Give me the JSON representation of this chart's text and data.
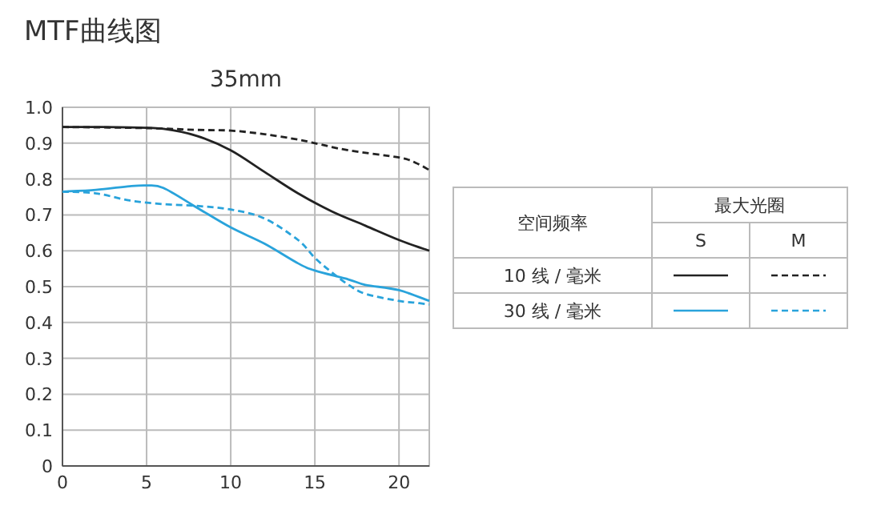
{
  "chart_data": {
    "type": "line",
    "title": "MTF曲线图",
    "subtitle": "35mm",
    "legend_title": "空间频率",
    "annotations": [
      "最大光圈",
      "S",
      "M"
    ],
    "xlim": [
      0,
      21.8
    ],
    "xticks": [
      0,
      5,
      10,
      15,
      20
    ],
    "ylim": [
      0,
      1.0
    ],
    "yticks": [
      0,
      0.1,
      0.2,
      0.3,
      0.4,
      0.5,
      0.6,
      0.7,
      0.8,
      0.9,
      {
        "value": 1.0,
        "label": "1.0"
      }
    ],
    "grid": true,
    "legend": "right",
    "series": [
      {
        "name": "10 线 / 毫米",
        "color": "#222222",
        "line_style": "solid",
        "x": [
          0,
          2,
          4,
          6,
          8,
          10,
          12,
          14,
          16,
          18,
          20,
          21.8
        ],
        "values": [
          0.945,
          0.945,
          0.944,
          0.94,
          0.92,
          0.88,
          0.82,
          0.76,
          0.71,
          0.67,
          0.63,
          0.6
        ]
      },
      {
        "color": "#222222",
        "line_style": "dashed",
        "x": [
          0,
          5,
          8,
          10,
          12,
          14,
          15,
          17,
          20,
          21,
          21.8
        ],
        "values": [
          0.945,
          0.942,
          0.937,
          0.935,
          0.925,
          0.91,
          0.9,
          0.88,
          0.86,
          0.845,
          0.825
        ]
      },
      {
        "name": "30 线 / 毫米",
        "color": "#29a3db",
        "line_style": "solid",
        "x": [
          0,
          2,
          4,
          5,
          6,
          8,
          10,
          12,
          14,
          15,
          17,
          18,
          20,
          21.8
        ],
        "values": [
          0.765,
          0.77,
          0.78,
          0.782,
          0.775,
          0.72,
          0.665,
          0.62,
          0.565,
          0.545,
          0.52,
          0.505,
          0.49,
          0.46
        ]
      },
      {
        "color": "#29a3db",
        "line_style": "dashed",
        "x": [
          0,
          2,
          4,
          6,
          8,
          10,
          12,
          14,
          15,
          16,
          17,
          18,
          20,
          21,
          21.8
        ],
        "values": [
          0.765,
          0.76,
          0.74,
          0.73,
          0.725,
          0.715,
          0.69,
          0.63,
          0.58,
          0.54,
          0.505,
          0.48,
          0.46,
          0.455,
          0.45
        ]
      }
    ]
  }
}
